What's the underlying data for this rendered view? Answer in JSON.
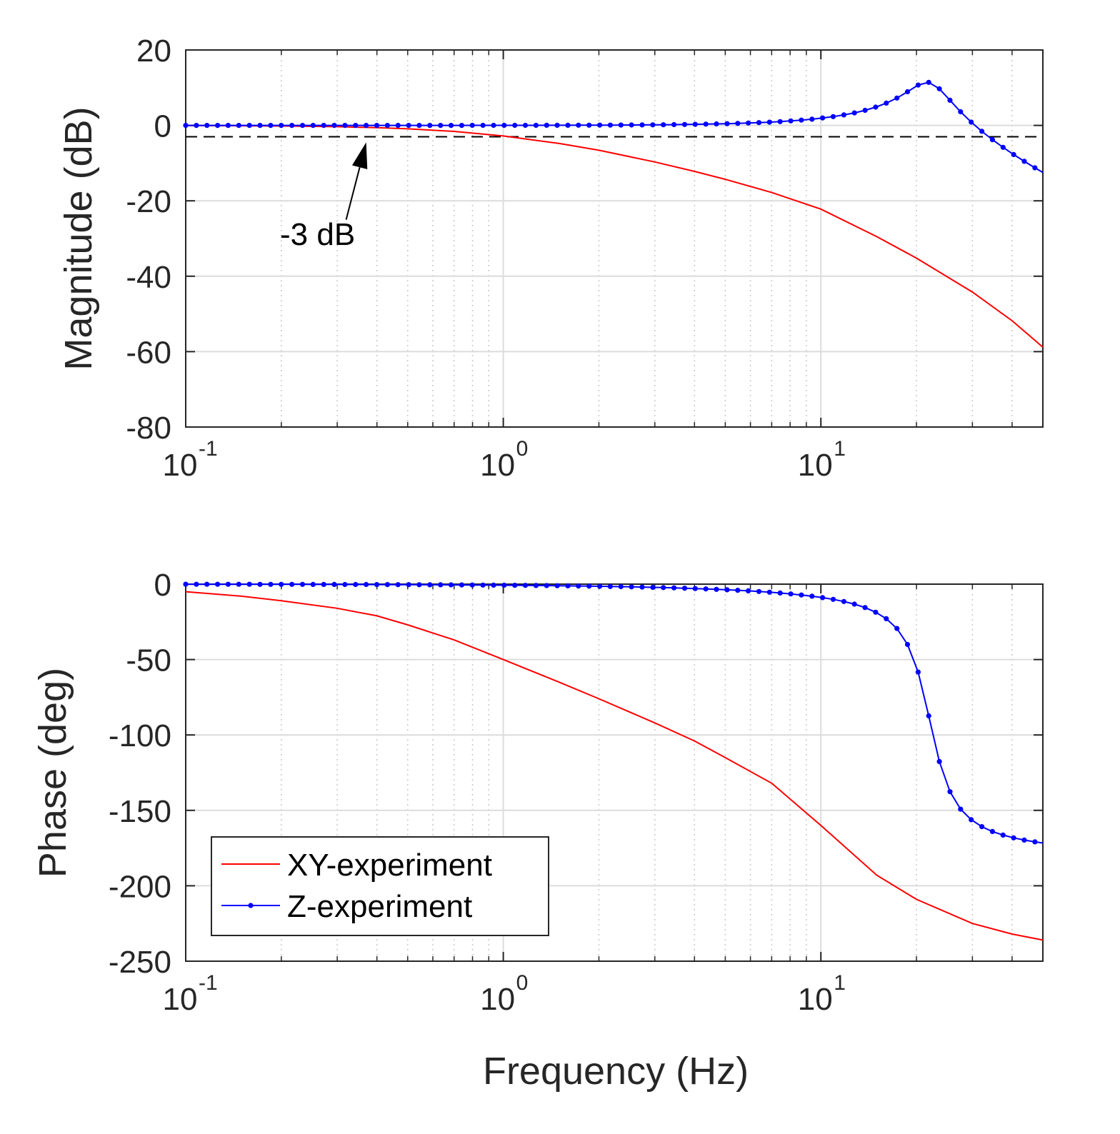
{
  "colors": {
    "xy": "#ff0000",
    "z": "#0000ff",
    "grid_major": "#dcdcdc",
    "grid_minor": "#c8c8c8",
    "axis": "#262626",
    "threshold": "#000000"
  },
  "chart_data": [
    {
      "id": "magnitude",
      "type": "line",
      "xscale": "log",
      "xlim": [
        0.1,
        50
      ],
      "ylim": [
        -80,
        20
      ],
      "yticks": [
        20,
        0,
        -20,
        -40,
        -60,
        -80
      ],
      "ytick_labels": [
        "20",
        "0",
        "-20",
        "-40",
        "-60",
        "-80"
      ],
      "xticks": [
        0.1,
        1,
        10
      ],
      "xtick_labels": [
        {
          "base": "10",
          "exp": "-1"
        },
        {
          "base": "10",
          "exp": "0"
        },
        {
          "base": "10",
          "exp": "1"
        }
      ],
      "xlabel": "",
      "ylabel": "Magnitude (dB)",
      "grid": true,
      "threshold_line": {
        "y": -3,
        "style": "dashed"
      },
      "annotation": {
        "text": "-3 dB",
        "arrow_to": {
          "x": 0.37,
          "y": -4.5
        },
        "arrow_from": {
          "x": 0.32,
          "y": -25
        }
      },
      "series": [
        {
          "name": "XY-experiment",
          "marker": "none",
          "x": [
            0.1,
            0.15,
            0.2,
            0.3,
            0.4,
            0.5,
            0.7,
            1.0,
            1.5,
            2,
            3,
            4,
            5,
            7,
            10,
            15,
            20,
            30,
            40,
            50
          ],
          "y": [
            -0.04,
            -0.1,
            -0.16,
            -0.35,
            -0.6,
            -0.9,
            -1.6,
            -2.8,
            -4.8,
            -6.6,
            -9.7,
            -12.2,
            -14.3,
            -17.8,
            -22.2,
            -29.5,
            -35.2,
            -44.2,
            -51.8,
            -58.8
          ]
        },
        {
          "name": "Z-experiment",
          "marker": "dot",
          "x_start": 0.1,
          "x_ratio": 1.08,
          "n_points": 81,
          "fn": {
            "type": "second_order",
            "fn_hz": 22,
            "zeta": 0.135
          }
        }
      ]
    },
    {
      "id": "phase",
      "type": "line",
      "xscale": "log",
      "xlim": [
        0.1,
        50
      ],
      "ylim": [
        -250,
        0
      ],
      "yticks": [
        0,
        -50,
        -100,
        -150,
        -200,
        -250
      ],
      "ytick_labels": [
        "0",
        "-50",
        "-100",
        "-150",
        "-200",
        "-250"
      ],
      "xticks": [
        0.1,
        1,
        10
      ],
      "xtick_labels": [
        {
          "base": "10",
          "exp": "-1"
        },
        {
          "base": "10",
          "exp": "0"
        },
        {
          "base": "10",
          "exp": "1"
        }
      ],
      "xlabel": "Frequency (Hz)",
      "ylabel": "Phase (deg)",
      "grid": true,
      "legend": {
        "position": "bottom-left",
        "entries": [
          "XY-experiment",
          "Z-experiment"
        ]
      },
      "series": [
        {
          "name": "XY-experiment",
          "marker": "none",
          "x": [
            0.1,
            0.15,
            0.2,
            0.3,
            0.4,
            0.5,
            0.7,
            1.0,
            1.5,
            2,
            3,
            4,
            5,
            7,
            10,
            15,
            20,
            30,
            40,
            50
          ],
          "y": [
            -5,
            -8,
            -11,
            -16,
            -21,
            -27,
            -37,
            -50,
            -65,
            -76,
            -92,
            -104,
            -115,
            -132,
            -160,
            -193,
            -209,
            -225,
            -232,
            -236
          ]
        },
        {
          "name": "Z-experiment",
          "marker": "dot",
          "x_start": 0.1,
          "x_ratio": 1.08,
          "n_points": 81,
          "fn": {
            "type": "second_order",
            "fn_hz": 22,
            "zeta": 0.135
          }
        }
      ]
    }
  ]
}
